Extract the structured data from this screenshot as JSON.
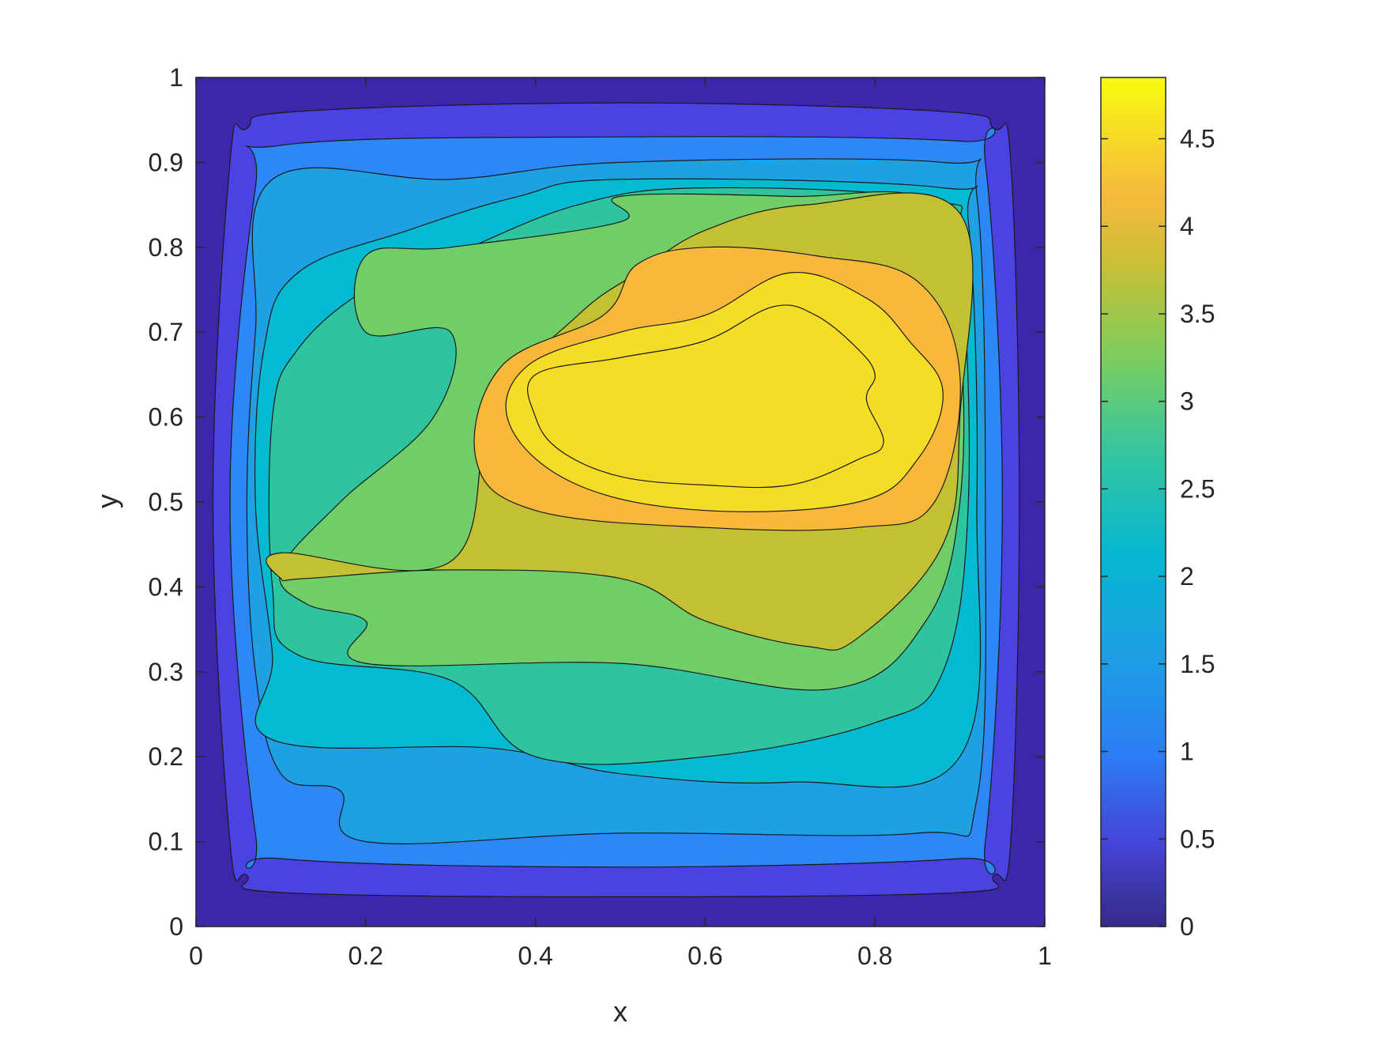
{
  "chart_data": {
    "type": "contour",
    "title": "",
    "xlabel": "x",
    "ylabel": "y",
    "xlim": [
      0,
      1
    ],
    "ylim": [
      0,
      1
    ],
    "x_ticks": [
      0,
      0.2,
      0.4,
      0.6,
      0.8,
      1
    ],
    "x_tick_labels": [
      "0",
      "0.2",
      "0.4",
      "0.6",
      "0.8",
      "1"
    ],
    "y_ticks": [
      0,
      0.1,
      0.2,
      0.3,
      0.4,
      0.5,
      0.6,
      0.7,
      0.8,
      0.9,
      1
    ],
    "y_tick_labels": [
      "0",
      "0.1",
      "0.2",
      "0.3",
      "0.4",
      "0.5",
      "0.6",
      "0.7",
      "0.8",
      "0.9",
      "1"
    ],
    "colorbar": {
      "range": [
        0,
        4.85
      ],
      "ticks": [
        0,
        0.5,
        1,
        1.5,
        2,
        2.5,
        3,
        3.5,
        4,
        4.5
      ],
      "tick_labels": [
        "0",
        "0.5",
        "1",
        "1.5",
        "2",
        "2.5",
        "3",
        "3.5",
        "4",
        "4.5"
      ],
      "colormap": "parula"
    },
    "levels": [
      0,
      0.4,
      0.8,
      1.2,
      1.6,
      2.0,
      2.4,
      2.8,
      3.2,
      3.6,
      4.0,
      4.4
    ],
    "level_colors": [
      "#3e26a8",
      "#4a42e1",
      "#2e87f7",
      "#1fa0e3",
      "#05b9d0",
      "#2fc4a0",
      "#70cd67",
      "#c3c034",
      "#f7b83c",
      "#f5dc26"
    ],
    "contour_regions": [
      {
        "level": 0.4,
        "points": [
          [
            0.04,
            0.9
          ],
          [
            0.06,
            0.94
          ],
          [
            0.12,
            0.96
          ],
          [
            0.5,
            0.97
          ],
          [
            0.88,
            0.96
          ],
          [
            0.94,
            0.94
          ],
          [
            0.96,
            0.9
          ],
          [
            0.97,
            0.5
          ],
          [
            0.96,
            0.1
          ],
          [
            0.94,
            0.06
          ],
          [
            0.9,
            0.04
          ],
          [
            0.5,
            0.035
          ],
          [
            0.1,
            0.04
          ],
          [
            0.06,
            0.06
          ],
          [
            0.04,
            0.1
          ],
          [
            0.02,
            0.5
          ]
        ]
      },
      {
        "level": 0.8,
        "points": [
          [
            0.07,
            0.87
          ],
          [
            0.1,
            0.92
          ],
          [
            0.5,
            0.93
          ],
          [
            0.9,
            0.925
          ],
          [
            0.93,
            0.9
          ],
          [
            0.95,
            0.5
          ],
          [
            0.93,
            0.1
          ],
          [
            0.9,
            0.08
          ],
          [
            0.5,
            0.07
          ],
          [
            0.1,
            0.08
          ],
          [
            0.07,
            0.11
          ],
          [
            0.04,
            0.5
          ]
        ]
      },
      {
        "level": 1.2,
        "points": [
          [
            0.09,
            0.88
          ],
          [
            0.3,
            0.88
          ],
          [
            0.5,
            0.9
          ],
          [
            0.88,
            0.9
          ],
          [
            0.92,
            0.86
          ],
          [
            0.93,
            0.5
          ],
          [
            0.92,
            0.15
          ],
          [
            0.85,
            0.11
          ],
          [
            0.5,
            0.11
          ],
          [
            0.2,
            0.1
          ],
          [
            0.17,
            0.16
          ],
          [
            0.1,
            0.18
          ],
          [
            0.07,
            0.3
          ],
          [
            0.06,
            0.5
          ],
          [
            0.07,
            0.7
          ]
        ]
      },
      {
        "level": 1.6,
        "points": [
          [
            0.12,
            0.77
          ],
          [
            0.25,
            0.82
          ],
          [
            0.38,
            0.86
          ],
          [
            0.5,
            0.88
          ],
          [
            0.88,
            0.87
          ],
          [
            0.91,
            0.83
          ],
          [
            0.92,
            0.5
          ],
          [
            0.9,
            0.2
          ],
          [
            0.7,
            0.17
          ],
          [
            0.5,
            0.18
          ],
          [
            0.35,
            0.21
          ],
          [
            0.09,
            0.22
          ],
          [
            0.09,
            0.32
          ],
          [
            0.07,
            0.5
          ],
          [
            0.08,
            0.68
          ]
        ]
      },
      {
        "level": 2.0,
        "points": [
          [
            0.12,
            0.68
          ],
          [
            0.2,
            0.75
          ],
          [
            0.3,
            0.79
          ],
          [
            0.45,
            0.85
          ],
          [
            0.6,
            0.87
          ],
          [
            0.87,
            0.855
          ],
          [
            0.9,
            0.8
          ],
          [
            0.91,
            0.5
          ],
          [
            0.88,
            0.3
          ],
          [
            0.8,
            0.24
          ],
          [
            0.6,
            0.2
          ],
          [
            0.4,
            0.2
          ],
          [
            0.3,
            0.29
          ],
          [
            0.12,
            0.32
          ],
          [
            0.09,
            0.4
          ],
          [
            0.09,
            0.6
          ]
        ]
      },
      {
        "level": 2.4,
        "points": [
          [
            0.2,
            0.79
          ],
          [
            0.3,
            0.8
          ],
          [
            0.5,
            0.83
          ],
          [
            0.5,
            0.86
          ],
          [
            0.7,
            0.86
          ],
          [
            0.87,
            0.85
          ],
          [
            0.9,
            0.7
          ],
          [
            0.9,
            0.5
          ],
          [
            0.86,
            0.36
          ],
          [
            0.75,
            0.28
          ],
          [
            0.5,
            0.31
          ],
          [
            0.2,
            0.31
          ],
          [
            0.2,
            0.36
          ],
          [
            0.13,
            0.38
          ],
          [
            0.1,
            0.42
          ],
          [
            0.17,
            0.5
          ],
          [
            0.28,
            0.6
          ],
          [
            0.3,
            0.7
          ],
          [
            0.2,
            0.7
          ]
        ]
      },
      {
        "level": 2.8,
        "points": [
          [
            0.1,
            0.44
          ],
          [
            0.3,
            0.43
          ],
          [
            0.35,
            0.61
          ],
          [
            0.45,
            0.72
          ],
          [
            0.52,
            0.77
          ],
          [
            0.6,
            0.82
          ],
          [
            0.72,
            0.85
          ],
          [
            0.9,
            0.84
          ],
          [
            0.9,
            0.6
          ],
          [
            0.88,
            0.45
          ],
          [
            0.78,
            0.34
          ],
          [
            0.72,
            0.33
          ],
          [
            0.6,
            0.36
          ],
          [
            0.5,
            0.41
          ],
          [
            0.3,
            0.42
          ],
          [
            0.13,
            0.41
          ],
          [
            0.1,
            0.41
          ]
        ]
      },
      {
        "level": 3.2,
        "points": [
          [
            0.33,
            0.55
          ],
          [
            0.36,
            0.66
          ],
          [
            0.48,
            0.72
          ],
          [
            0.52,
            0.78
          ],
          [
            0.6,
            0.8
          ],
          [
            0.73,
            0.79
          ],
          [
            0.85,
            0.76
          ],
          [
            0.9,
            0.65
          ],
          [
            0.87,
            0.5
          ],
          [
            0.78,
            0.47
          ],
          [
            0.6,
            0.47
          ],
          [
            0.4,
            0.49
          ]
        ]
      },
      {
        "level": 3.6,
        "points": [
          [
            0.37,
            0.59
          ],
          [
            0.39,
            0.66
          ],
          [
            0.5,
            0.7
          ],
          [
            0.6,
            0.72
          ],
          [
            0.7,
            0.77
          ],
          [
            0.79,
            0.74
          ],
          [
            0.84,
            0.69
          ],
          [
            0.88,
            0.63
          ],
          [
            0.85,
            0.55
          ],
          [
            0.78,
            0.5
          ],
          [
            0.6,
            0.49
          ],
          [
            0.45,
            0.52
          ]
        ]
      },
      {
        "level": 4.0,
        "points": [
          [
            0.4,
            0.6
          ],
          [
            0.4,
            0.65
          ],
          [
            0.5,
            0.67
          ],
          [
            0.6,
            0.69
          ],
          [
            0.68,
            0.73
          ],
          [
            0.73,
            0.72
          ],
          [
            0.78,
            0.68
          ],
          [
            0.8,
            0.65
          ],
          [
            0.79,
            0.62
          ],
          [
            0.81,
            0.57
          ],
          [
            0.78,
            0.55
          ],
          [
            0.7,
            0.52
          ],
          [
            0.6,
            0.52
          ],
          [
            0.5,
            0.53
          ],
          [
            0.43,
            0.56
          ]
        ]
      }
    ]
  }
}
